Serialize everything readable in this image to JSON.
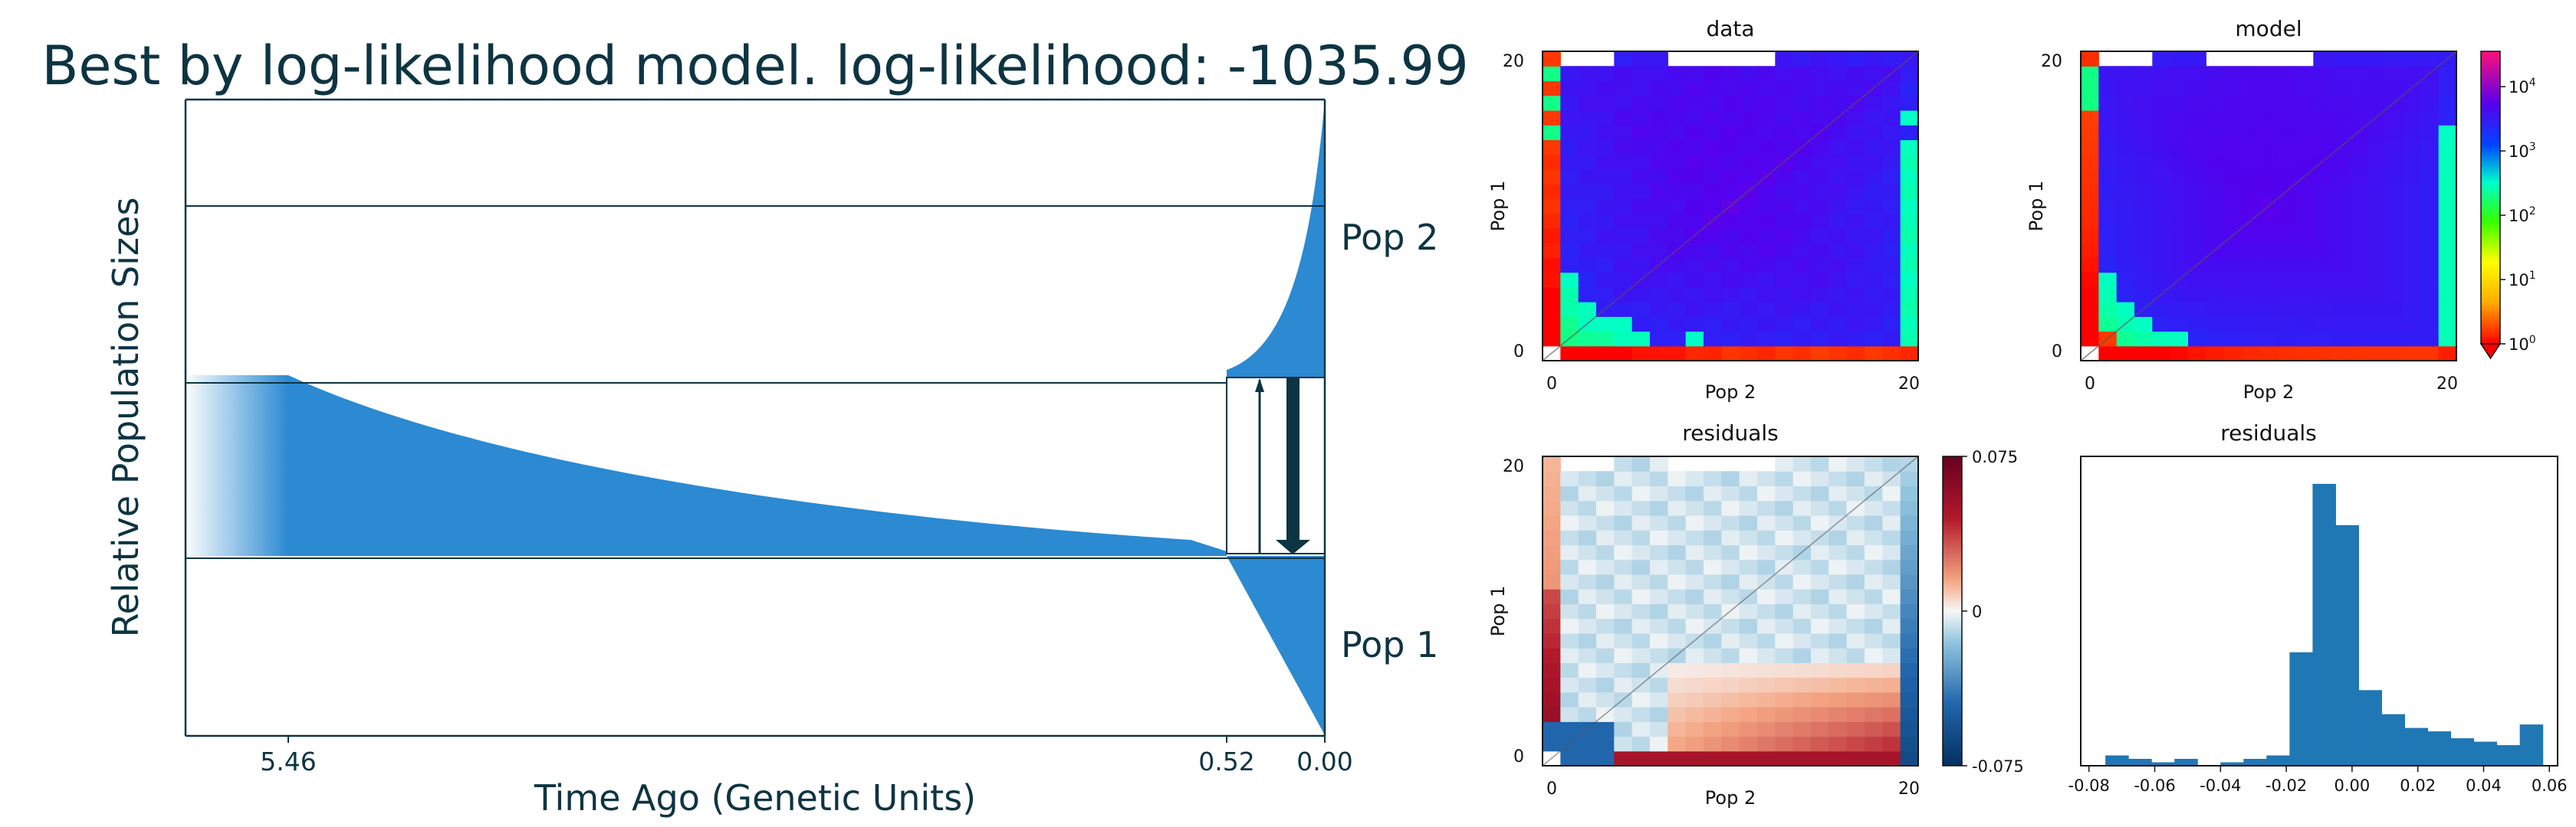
{
  "chart_data": [
    {
      "type": "area",
      "title": "Best by log-likelihood model. log-likelihood: -1035.99",
      "xlabel": "Time Ago (Genetic Units)",
      "ylabel": "Relative Population Sizes",
      "x_ticks": [
        "5.46",
        "0.52",
        "0.00"
      ],
      "populations": [
        {
          "name": "Pop 2",
          "size_at_present": 2.1,
          "size_at_split": 0.05
        },
        {
          "name": "Pop 1",
          "size_at_present": 1.7,
          "size_at_split": 0.05
        }
      ],
      "ancestral": {
        "size_at_5.46": 1.0,
        "size_at_0.52": 0.05
      },
      "migration": [
        "Pop 1 → Pop 2",
        "Pop 2 → Pop 1"
      ],
      "colors": {
        "population": "#2b8ad2",
        "text": "#0d3443",
        "line": "#0d3443",
        "arrow": "#0d3443"
      }
    },
    {
      "type": "heatmap",
      "title": "data",
      "xlabel": "Pop 2",
      "ylabel": "Pop 1",
      "x_ticks": [
        "0",
        "20"
      ],
      "y_ticks": [
        "0",
        "20"
      ],
      "size": 21,
      "log_scale": true
    },
    {
      "type": "heatmap",
      "title": "model",
      "xlabel": "Pop 2",
      "ylabel": "Pop 1",
      "x_ticks": [
        "0",
        "20"
      ],
      "y_ticks": [
        "0",
        "20"
      ],
      "size": 21,
      "log_scale": true,
      "colorbar": {
        "scale": "log",
        "tick_values": [
          1,
          10,
          100,
          1000,
          10000
        ],
        "ticks": [
          {
            "base": "10",
            "exp": "0"
          },
          {
            "base": "10",
            "exp": "1"
          },
          {
            "base": "10",
            "exp": "2"
          },
          {
            "base": "10",
            "exp": "3"
          },
          {
            "base": "10",
            "exp": "4"
          }
        ]
      }
    },
    {
      "type": "heatmap",
      "title": "residuals",
      "xlabel": "Pop 2",
      "ylabel": "Pop 1",
      "x_ticks": [
        "0",
        "20"
      ],
      "y_ticks": [
        "0",
        "20"
      ],
      "size": 21,
      "colorbar": {
        "range": [
          -0.075,
          0.075
        ],
        "ticks": [
          "0.075",
          "0",
          "-0.075"
        ]
      }
    },
    {
      "type": "bar",
      "title": "residuals",
      "x_ticks": [
        "-0.08",
        "-0.06",
        "-0.04",
        "-0.02",
        "0.00",
        "0.02",
        "0.04",
        "0.06"
      ],
      "bins": [
        -0.075,
        -0.068,
        -0.061,
        -0.054,
        -0.047,
        -0.04,
        -0.033,
        -0.026,
        -0.019,
        -0.012,
        -0.005,
        0.002,
        0.009,
        0.016,
        0.023,
        0.03,
        0.037,
        0.044,
        0.051,
        0.058
      ],
      "counts": [
        3,
        2,
        1,
        2,
        0,
        1,
        2,
        3,
        33,
        82,
        70,
        22,
        15,
        11,
        10,
        8,
        7,
        6,
        12
      ]
    }
  ]
}
